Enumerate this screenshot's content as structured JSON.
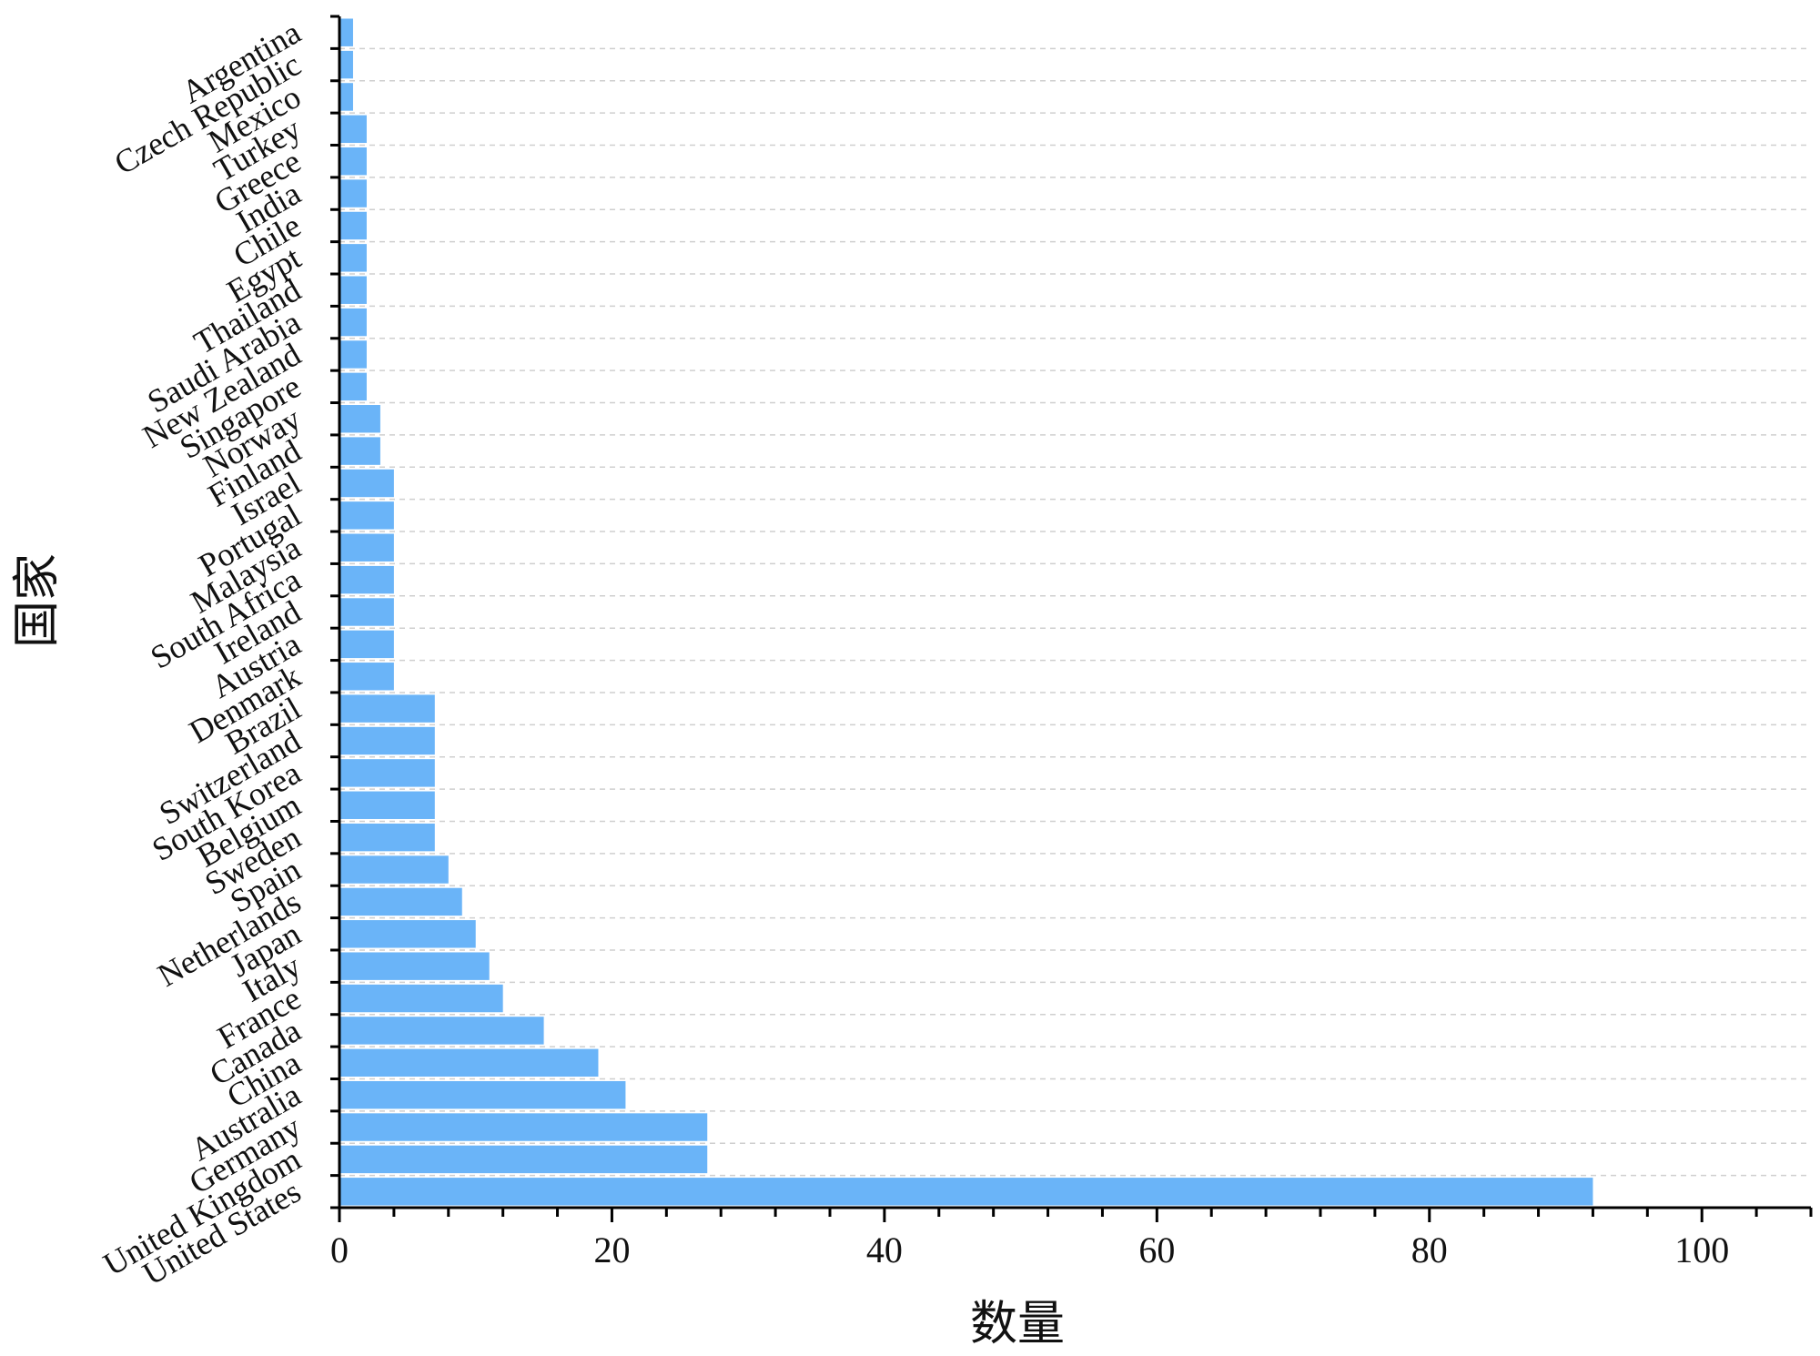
{
  "chart_data": {
    "type": "bar",
    "orientation": "horizontal",
    "categories": [
      "United States",
      "United Kingdom",
      "Germany",
      "Australia",
      "China",
      "Canada",
      "France",
      "Italy",
      "Japan",
      "Netherlands",
      "Spain",
      "Sweden",
      "Belgium",
      "South Korea",
      "Switzerland",
      "Brazil",
      "Denmark",
      "Austria",
      "Ireland",
      "South Africa",
      "Malaysia",
      "Portugal",
      "Israel",
      "Finland",
      "Norway",
      "Singapore",
      "New Zealand",
      "Saudi Arabia",
      "Thailand",
      "Egypt",
      "Chile",
      "India",
      "Greece",
      "Turkey",
      "Mexico",
      "Czech Republic",
      "Argentina"
    ],
    "values": [
      92,
      27,
      27,
      21,
      19,
      15,
      12,
      11,
      10,
      9,
      8,
      7,
      7,
      7,
      7,
      7,
      4,
      4,
      4,
      4,
      4,
      4,
      4,
      3,
      3,
      2,
      2,
      2,
      2,
      2,
      2,
      2,
      2,
      2,
      1,
      1,
      1
    ],
    "xlabel": "数量",
    "ylabel": "国家",
    "xlim": [
      0,
      108
    ],
    "xticks": [
      0,
      20,
      40,
      60,
      80,
      100
    ],
    "grid": "horizontal dashed",
    "bar_color": "#6ab4f8"
  }
}
